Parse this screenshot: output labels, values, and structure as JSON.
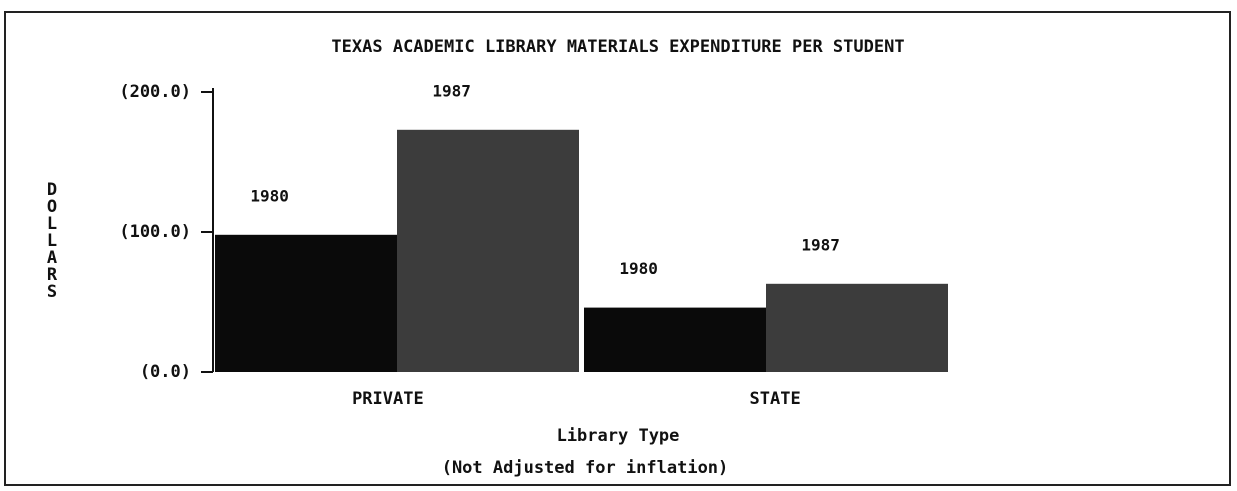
{
  "chart_data": {
    "type": "bar",
    "title": "TEXAS ACADEMIC LIBRARY MATERIALS EXPENDITURE PER STUDENT",
    "ylabel": "DOLLARS",
    "xlabel": "Library Type",
    "subtitle": "(Not Adjusted for inflation)",
    "categories": [
      "PRIVATE",
      "STATE"
    ],
    "series": [
      {
        "name": "1980",
        "color": "#0a0a0a",
        "values": [
          98,
          46
        ]
      },
      {
        "name": "1987",
        "color": "#3c3c3c",
        "values": [
          173,
          63
        ]
      }
    ],
    "ylim": [
      0,
      200
    ],
    "yticks": [
      {
        "value": 0,
        "label": "(0.0)"
      },
      {
        "value": 100,
        "label": "(100.0)"
      },
      {
        "value": 200,
        "label": "(200.0)"
      }
    ]
  }
}
